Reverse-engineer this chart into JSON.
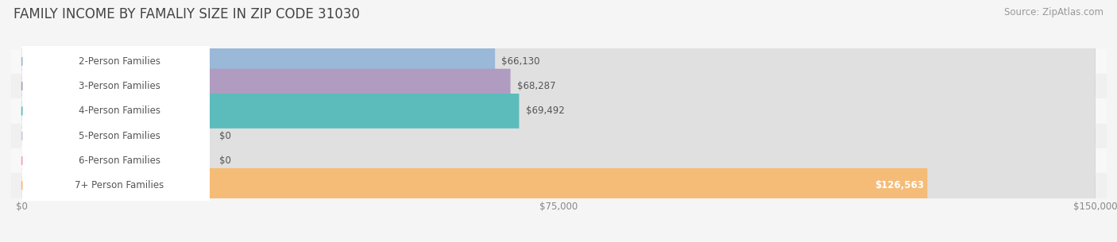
{
  "title": "FAMILY INCOME BY FAMALIY SIZE IN ZIP CODE 31030",
  "source": "Source: ZipAtlas.com",
  "categories": [
    "2-Person Families",
    "3-Person Families",
    "4-Person Families",
    "5-Person Families",
    "6-Person Families",
    "7+ Person Families"
  ],
  "values": [
    66130,
    68287,
    69492,
    0,
    0,
    126563
  ],
  "bar_colors": [
    "#9ab8d8",
    "#b09cc0",
    "#5bbcbb",
    "#c8c8e8",
    "#f5a0b8",
    "#f5bc78"
  ],
  "value_labels": [
    "$66,130",
    "$68,287",
    "$69,492",
    "$0",
    "$0",
    "$126,563"
  ],
  "value_inside": [
    false,
    false,
    false,
    false,
    false,
    true
  ],
  "xlim": [
    0,
    150000
  ],
  "xticks": [
    0,
    75000,
    150000
  ],
  "xtick_labels": [
    "$0",
    "$75,000",
    "$150,000"
  ],
  "row_colors": [
    "#f8f8f8",
    "#f0f0f0",
    "#f8f8f8",
    "#f0f0f0",
    "#f8f8f8",
    "#f0f0f0"
  ],
  "track_color": "#e0e0e0",
  "title_fontsize": 12,
  "source_fontsize": 8.5,
  "label_fontsize": 8.5,
  "value_fontsize": 8.5
}
